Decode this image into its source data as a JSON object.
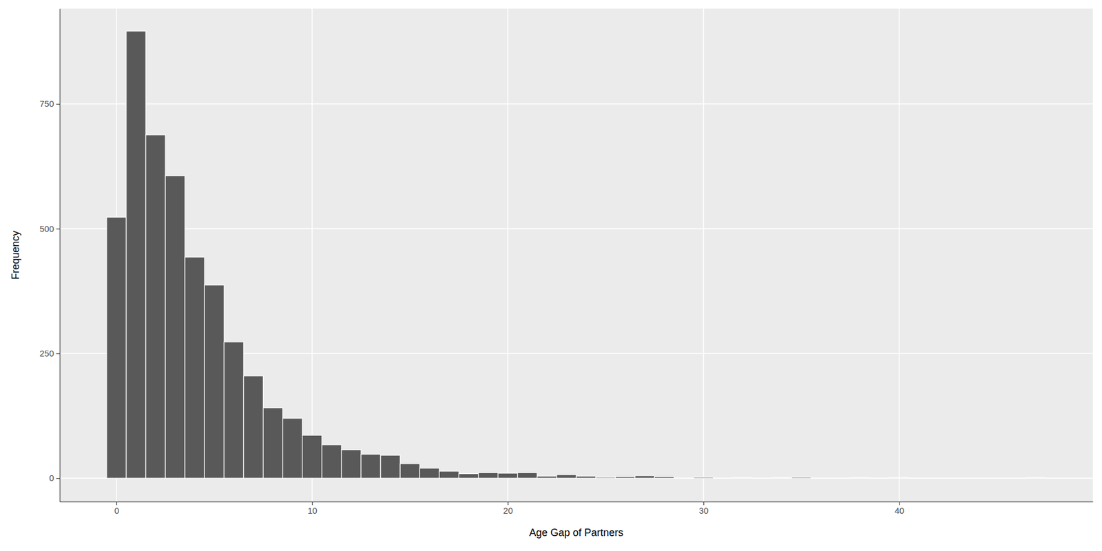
{
  "chart_data": {
    "type": "histogram",
    "xlabel": "Age Gap of Partners",
    "ylabel": "Frequency",
    "bins": [
      -0.5,
      0.5,
      1.5,
      2.5,
      3.5,
      4.5,
      5.5,
      6.5,
      7.5,
      8.5,
      9.5,
      10.5,
      11.5,
      12.5,
      13.5,
      14.5,
      15.5,
      16.5,
      17.5,
      18.5,
      19.5,
      20.5,
      21.5,
      22.5,
      23.5,
      24.5,
      25.5,
      26.5,
      27.5,
      28.5,
      29.5,
      30.5,
      31.5,
      32.5,
      33.5,
      34.5,
      35.5,
      36.5,
      37.5,
      38.5,
      39.5,
      40.5,
      41.5,
      42.5,
      43.5,
      44.5,
      45.5,
      46.5,
      47.5
    ],
    "values": [
      523,
      896,
      688,
      606,
      443,
      387,
      273,
      205,
      141,
      120,
      86,
      67,
      57,
      48,
      46,
      29,
      20,
      14,
      9,
      11,
      10,
      11,
      4,
      7,
      4,
      2,
      3,
      5,
      3,
      0,
      2,
      0,
      1,
      0,
      1,
      2,
      0,
      0,
      1,
      0,
      1,
      0,
      0,
      0,
      0,
      0,
      0,
      1
    ],
    "color": "#595959",
    "xlim": [
      -2.9,
      49.9
    ],
    "xticks": [
      0,
      10,
      20,
      30,
      40
    ],
    "ylim": [
      -47,
      941
    ],
    "yticks": [
      0,
      250,
      500,
      750
    ],
    "grid": true
  }
}
